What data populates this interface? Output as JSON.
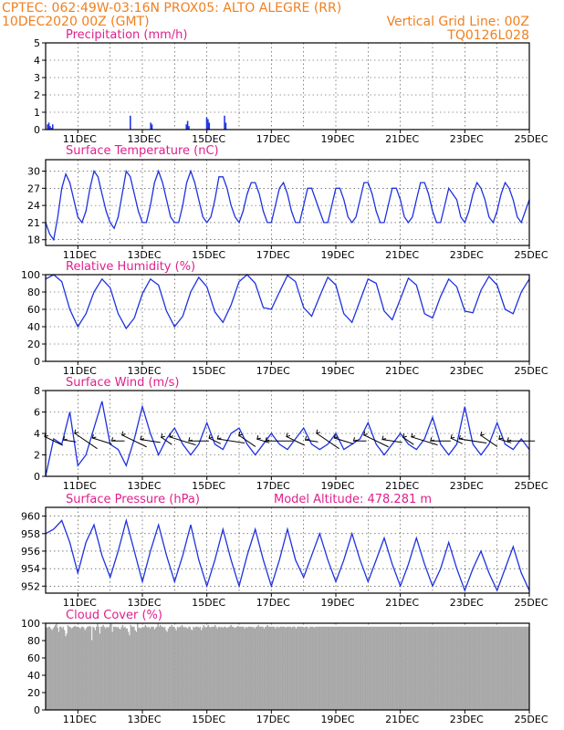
{
  "header": {
    "line1": "CPTEC:   062:49W-03:16N   PROX05: ALTO ALEGRE (RR)",
    "line2": "10DEC2020 00Z (GMT)",
    "grid_line": "Vertical Grid Line: 00Z",
    "code": "TQ0126L028"
  },
  "x_axis": {
    "days": [
      "11DEC",
      "13DEC",
      "15DEC",
      "17DEC",
      "19DEC",
      "21DEC",
      "23DEC",
      "25DEC"
    ],
    "range_hours": [
      0,
      360
    ],
    "label_hours": [
      24,
      72,
      120,
      168,
      216,
      264,
      312,
      360
    ],
    "grid_hours": [
      24,
      48,
      72,
      96,
      120,
      144,
      168,
      192,
      216,
      240,
      264,
      288,
      312,
      336
    ]
  },
  "colors": {
    "series": "#1e32e0",
    "title": "#e0208c",
    "header": "#f08020",
    "cloud": "#a8a8a8"
  },
  "chart_data": [
    {
      "id": "precip",
      "type": "bar",
      "title": "Precipitation (mm/h)",
      "ylim": [
        0,
        5
      ],
      "yticks": [
        0,
        1,
        2,
        3,
        4,
        5
      ],
      "values": [
        0,
        0.3,
        0.4,
        0.2,
        0.1,
        0.3,
        0,
        0,
        0,
        0,
        0,
        0,
        0,
        0,
        0,
        0,
        0,
        0,
        0,
        0,
        0,
        0,
        0,
        0,
        0,
        0,
        0,
        0,
        0,
        0,
        0,
        0,
        0,
        0,
        0,
        0,
        0,
        0,
        0,
        0,
        0,
        0,
        0,
        0,
        0,
        0,
        0,
        0,
        0,
        0,
        0,
        0,
        0,
        0,
        0,
        0,
        0,
        0,
        0,
        0,
        0,
        0,
        0,
        0,
        0,
        0,
        0.8,
        0,
        0,
        0,
        0,
        0,
        0,
        0,
        0,
        0,
        0,
        0,
        0,
        0,
        0,
        0,
        0.4,
        0.3,
        0,
        0,
        0,
        0,
        0,
        0,
        0,
        0,
        0,
        0,
        0,
        0,
        0,
        0,
        0,
        0,
        0,
        0,
        0,
        0,
        0,
        0,
        0,
        0,
        0,
        0,
        0.3,
        0.5,
        0.2,
        0,
        0,
        0,
        0,
        0,
        0,
        0,
        0,
        0,
        0,
        0,
        0,
        0,
        0.7,
        0.6,
        0.4,
        0,
        0,
        0,
        0,
        0,
        0,
        0,
        0,
        0,
        0,
        0,
        0.8,
        0.4,
        0,
        0,
        0,
        0,
        0,
        0,
        0,
        0,
        0,
        0,
        0,
        0,
        0,
        0,
        0,
        0,
        0,
        0,
        0,
        0,
        0,
        0,
        0,
        0,
        0,
        0,
        0,
        0,
        0,
        0,
        0,
        0,
        0,
        0,
        0,
        0,
        0,
        0,
        0,
        0,
        0,
        0,
        0,
        0,
        0,
        0,
        0,
        0,
        0,
        0,
        0,
        0,
        0,
        0,
        0,
        0,
        0,
        0,
        0,
        0,
        0,
        0,
        0,
        0,
        0,
        0,
        0,
        0,
        0,
        0,
        0,
        0,
        0,
        0,
        0,
        0,
        0,
        0,
        0,
        0,
        0,
        0,
        0,
        0,
        0,
        0,
        0,
        0,
        0,
        0,
        0,
        0,
        0,
        0,
        0,
        0,
        0,
        0,
        0,
        0,
        0,
        0,
        0,
        0,
        0,
        0,
        0,
        0,
        0,
        0,
        0,
        0,
        0,
        0,
        0,
        0,
        0,
        0,
        0,
        0,
        0,
        0,
        0,
        0,
        0,
        0,
        0,
        0,
        0,
        0,
        0,
        0,
        0,
        0,
        0,
        0,
        0,
        0,
        0,
        0,
        0,
        0,
        0,
        0,
        0,
        0,
        0,
        0,
        0,
        0,
        0,
        0,
        0,
        0,
        0,
        0,
        0,
        0,
        0,
        0,
        0,
        0,
        0,
        0,
        0,
        0,
        0,
        0,
        0,
        0,
        0,
        0,
        0,
        0,
        0,
        0,
        0,
        0,
        0,
        0,
        0,
        0,
        0,
        0,
        0,
        0,
        0,
        0,
        0,
        0,
        0,
        0,
        0,
        0,
        0,
        0,
        0,
        0,
        0,
        0,
        0,
        0,
        0,
        0,
        0,
        0,
        0,
        0,
        0,
        0,
        0,
        0,
        0,
        0,
        0,
        0,
        0,
        0,
        0,
        0,
        0,
        0,
        0,
        0,
        0,
        0,
        0,
        0,
        0,
        0,
        0,
        0,
        0,
        0,
        0,
        0,
        0,
        0
      ]
    },
    {
      "id": "temp",
      "type": "line",
      "title": "Surface Temperature (nC)",
      "ylim": [
        17,
        32
      ],
      "yticks": [
        18,
        21,
        24,
        27,
        30
      ],
      "x": [
        0,
        3,
        6,
        9,
        12,
        15,
        18,
        21,
        24,
        27,
        30,
        33,
        36,
        39,
        42,
        45,
        48,
        51,
        54,
        57,
        60,
        63,
        66,
        69,
        72,
        75,
        78,
        81,
        84,
        87,
        90,
        93,
        96,
        99,
        102,
        105,
        108,
        111,
        114,
        117,
        120,
        123,
        126,
        129,
        132,
        135,
        138,
        141,
        144,
        147,
        150,
        153,
        156,
        159,
        162,
        165,
        168,
        171,
        174,
        177,
        180,
        183,
        186,
        189,
        192,
        195,
        198,
        201,
        204,
        207,
        210,
        213,
        216,
        219,
        222,
        225,
        228,
        231,
        234,
        237,
        240,
        243,
        246,
        249,
        252,
        255,
        258,
        261,
        264,
        267,
        270,
        273,
        276,
        279,
        282,
        285,
        288,
        291,
        294,
        297,
        300,
        303,
        306,
        309,
        312,
        315,
        318,
        321,
        324,
        327,
        330,
        333,
        336,
        339,
        342,
        345,
        348,
        351,
        354,
        357,
        360
      ],
      "y": [
        21,
        19,
        18,
        22,
        27,
        29.5,
        28,
        25,
        22,
        21,
        23,
        27,
        30,
        29,
        26,
        23,
        21,
        20,
        22,
        26,
        30,
        29,
        26,
        23,
        21,
        21,
        24,
        28,
        30,
        28,
        25,
        22,
        21,
        21,
        24,
        28,
        30,
        28,
        25,
        22,
        21,
        22,
        25,
        29,
        29,
        27,
        24,
        22,
        21,
        23,
        26,
        28,
        28,
        26,
        23,
        21,
        21,
        24,
        27,
        28,
        26,
        23,
        21,
        21,
        24,
        27,
        27,
        25,
        23,
        21,
        21,
        24,
        27,
        27,
        25,
        22,
        21,
        22,
        25,
        28,
        28,
        26,
        23,
        21,
        21,
        24,
        27,
        27,
        25,
        22,
        21,
        22,
        25,
        28,
        28,
        26,
        23,
        21,
        21,
        24,
        27,
        26,
        25,
        22,
        21,
        23,
        26,
        28,
        27,
        25,
        22,
        21,
        23,
        26,
        28,
        27,
        25,
        22,
        21,
        23,
        25
      ]
    },
    {
      "id": "humidity",
      "type": "line",
      "title": "Relative Humidity (%)",
      "ylim": [
        0,
        100
      ],
      "yticks": [
        0,
        20,
        40,
        60,
        80,
        100
      ],
      "x": [
        0,
        6,
        12,
        18,
        24,
        30,
        36,
        42,
        48,
        54,
        60,
        66,
        72,
        78,
        84,
        90,
        96,
        102,
        108,
        114,
        120,
        126,
        132,
        138,
        144,
        150,
        156,
        162,
        168,
        174,
        180,
        186,
        192,
        198,
        204,
        210,
        216,
        222,
        228,
        234,
        240,
        246,
        252,
        258,
        264,
        270,
        276,
        282,
        288,
        294,
        300,
        306,
        312,
        318,
        324,
        330,
        336,
        342,
        348,
        354,
        360
      ],
      "y": [
        95,
        100,
        92,
        60,
        40,
        55,
        80,
        95,
        85,
        55,
        38,
        50,
        78,
        95,
        88,
        58,
        40,
        52,
        80,
        97,
        86,
        57,
        45,
        65,
        92,
        100,
        90,
        62,
        60,
        80,
        99,
        92,
        62,
        52,
        75,
        97,
        88,
        55,
        45,
        70,
        95,
        90,
        58,
        48,
        72,
        96,
        88,
        55,
        50,
        75,
        95,
        86,
        58,
        56,
        82,
        98,
        88,
        60,
        55,
        80,
        95
      ]
    },
    {
      "id": "wind",
      "type": "line",
      "title": "Surface Wind (m/s)",
      "ylim": [
        0,
        8
      ],
      "yticks": [
        0,
        2,
        4,
        6,
        8
      ],
      "x": [
        0,
        6,
        12,
        18,
        24,
        30,
        36,
        42,
        48,
        54,
        60,
        66,
        72,
        78,
        84,
        90,
        96,
        102,
        108,
        114,
        120,
        126,
        132,
        138,
        144,
        150,
        156,
        162,
        168,
        174,
        180,
        186,
        192,
        198,
        204,
        210,
        216,
        222,
        228,
        234,
        240,
        246,
        252,
        258,
        264,
        270,
        276,
        282,
        288,
        294,
        300,
        306,
        312,
        318,
        324,
        330,
        336,
        342,
        348,
        354,
        360
      ],
      "y": [
        0,
        3.5,
        3,
        6,
        1,
        2,
        4.5,
        7,
        3,
        2.5,
        1,
        3.5,
        6.5,
        4,
        2,
        3.5,
        4.5,
        3,
        2,
        3,
        5,
        3,
        2.5,
        4,
        4.5,
        3,
        2,
        3,
        4,
        3,
        2.5,
        3.5,
        4.5,
        3,
        2.5,
        3,
        4,
        2.5,
        3,
        3.5,
        5,
        3,
        2,
        3,
        4,
        3,
        2.5,
        3.5,
        5.5,
        3,
        2,
        3,
        6.5,
        3,
        2,
        3,
        5,
        3,
        2.5,
        3.5,
        2.5
      ]
    },
    {
      "id": "pressure",
      "type": "line",
      "title": "Surface Pressure (hPa)",
      "subtitle": "Model Altitude: 478.281 m",
      "ylim": [
        951.2,
        961
      ],
      "yticks": [
        952,
        954,
        956,
        958,
        960
      ],
      "x": [
        0,
        6,
        12,
        18,
        24,
        30,
        36,
        42,
        48,
        54,
        60,
        66,
        72,
        78,
        84,
        90,
        96,
        102,
        108,
        114,
        120,
        126,
        132,
        138,
        144,
        150,
        156,
        162,
        168,
        174,
        180,
        186,
        192,
        198,
        204,
        210,
        216,
        222,
        228,
        234,
        240,
        246,
        252,
        258,
        264,
        270,
        276,
        282,
        288,
        294,
        300,
        306,
        312,
        318,
        324,
        330,
        336,
        342,
        348,
        354,
        360
      ],
      "y": [
        958,
        958.5,
        959.5,
        957,
        953.5,
        957,
        959,
        955.5,
        953,
        956,
        959.5,
        956,
        952.5,
        956,
        959,
        955.5,
        952.5,
        955.5,
        959,
        955,
        952,
        955,
        958.5,
        955,
        952,
        955.5,
        958.5,
        955,
        952,
        955,
        958.5,
        955,
        953,
        955.5,
        958,
        955,
        952.5,
        955,
        958,
        955,
        952.5,
        955,
        957.5,
        954.5,
        952,
        954.5,
        957.5,
        954.5,
        952,
        954,
        957,
        954,
        951.5,
        954,
        956,
        953.5,
        951.5,
        954,
        956.5,
        953.5,
        951.5
      ]
    },
    {
      "id": "cloud",
      "type": "bar",
      "title": "Cloud Cover (%)",
      "ylim": [
        0,
        100
      ],
      "yticks": [
        0,
        20,
        40,
        60,
        80,
        100
      ],
      "values": [
        95,
        95,
        96,
        96,
        94,
        92,
        94,
        96,
        98,
        100,
        95,
        90,
        96,
        96,
        94,
        96,
        92,
        85,
        88,
        98,
        96,
        96,
        94,
        95,
        96,
        97,
        96,
        96,
        96,
        95,
        94,
        96,
        96,
        95,
        92,
        94,
        96,
        96,
        97,
        96,
        80,
        96,
        95,
        92,
        96,
        100,
        96,
        88,
        96,
        96,
        98,
        96,
        94,
        96,
        95,
        96,
        98,
        100,
        90,
        96,
        96,
        96,
        95,
        96,
        94,
        93,
        96,
        98,
        95,
        96,
        94,
        94,
        90,
        86,
        98,
        96,
        96,
        96,
        92,
        90,
        100,
        95,
        95,
        94,
        96,
        95,
        96,
        98,
        96,
        95,
        96,
        94,
        96,
        96,
        96,
        93,
        95,
        96,
        100,
        96,
        98,
        96,
        96,
        95,
        96,
        92,
        90,
        94,
        96,
        96,
        98,
        96,
        96,
        94,
        92,
        96,
        95,
        96,
        96,
        98,
        96,
        95,
        96,
        95,
        94,
        96,
        96,
        93,
        92,
        96,
        95,
        96,
        96,
        96,
        95,
        96,
        92,
        95,
        98,
        96,
        95,
        96,
        98,
        96,
        95,
        96,
        96,
        96,
        98,
        96,
        94,
        96,
        96,
        95,
        96,
        95,
        96,
        96,
        95,
        95,
        96,
        96,
        98,
        96,
        96,
        95,
        95,
        96,
        97,
        96,
        96,
        96,
        96,
        96,
        94,
        96,
        95,
        96,
        96,
        96,
        96,
        95,
        96,
        94,
        96,
        96,
        98,
        96,
        96,
        96,
        96,
        94,
        96,
        96,
        98,
        96,
        96,
        96,
        96,
        96,
        96,
        94,
        96,
        96,
        95,
        96,
        96,
        96,
        96,
        96,
        95,
        96,
        96,
        96,
        96,
        95,
        96,
        96,
        96,
        94,
        96,
        96,
        96,
        96,
        96,
        96,
        95,
        96,
        96,
        96,
        94,
        96,
        96,
        96,
        96,
        95,
        96,
        96,
        96,
        96,
        96,
        96,
        96,
        96,
        96,
        96,
        96,
        96,
        96,
        96,
        96,
        96,
        96,
        96,
        96,
        96,
        96,
        96,
        96,
        96,
        96,
        96,
        96,
        96,
        96,
        96,
        96,
        96,
        96,
        96,
        96,
        96,
        96,
        96,
        96,
        96,
        96,
        96,
        96,
        96,
        96,
        96,
        96,
        96,
        96,
        96,
        96,
        96,
        96,
        96,
        96,
        96,
        96,
        96,
        96,
        96,
        96,
        96,
        96,
        96,
        96,
        96,
        96,
        96,
        96,
        96,
        96,
        96,
        96,
        96,
        96,
        96,
        96,
        96,
        96,
        96,
        96,
        96,
        96,
        96,
        96,
        96,
        96,
        96,
        96,
        96,
        96,
        96,
        96,
        96,
        96,
        96,
        96,
        96,
        96,
        96,
        96,
        96,
        96,
        96,
        96,
        96,
        96,
        96,
        96,
        96,
        96,
        96,
        96,
        96,
        96,
        96,
        96,
        96,
        96,
        96,
        96,
        96,
        96,
        96,
        96,
        96,
        96,
        96,
        96,
        96,
        96,
        96,
        96,
        96,
        96,
        96,
        96,
        96,
        96,
        96,
        96,
        96,
        96,
        96,
        96,
        96,
        96,
        96,
        96,
        96,
        96,
        96,
        96,
        96,
        96,
        96,
        96,
        96,
        96,
        96,
        96,
        96,
        96,
        96,
        96,
        96,
        96,
        96,
        96,
        96,
        96,
        96,
        96,
        96,
        96,
        96,
        96,
        96,
        96,
        96,
        96,
        96,
        96,
        96,
        96,
        96,
        96,
        96
      ]
    }
  ]
}
